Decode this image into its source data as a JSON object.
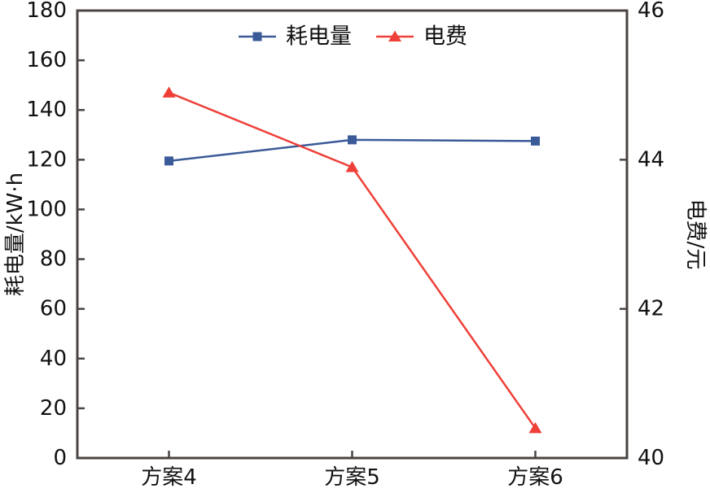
{
  "chart_data": {
    "type": "line",
    "categories": [
      "方案4",
      "方案5",
      "方案6"
    ],
    "series": [
      {
        "name": "耗电量",
        "axis": "left",
        "color": "#3a5a98",
        "marker": "square",
        "values": [
          119.5,
          128,
          127.5
        ]
      },
      {
        "name": "电费",
        "axis": "right",
        "color": "#ee4038",
        "marker": "triangle",
        "values": [
          44.9,
          43.9,
          40.4
        ]
      }
    ],
    "left_axis": {
      "label": "耗电量/kW·h",
      "min": 0,
      "max": 180,
      "tick_step": 20,
      "ticks": [
        0,
        20,
        40,
        60,
        80,
        100,
        120,
        140,
        160,
        180
      ]
    },
    "right_axis": {
      "label": "电费/元",
      "min": 40,
      "max": 46,
      "ticks": [
        40,
        42,
        44,
        46
      ]
    },
    "legend": {
      "position": "top-center",
      "entries": [
        {
          "label": "耗电量",
          "marker": "square",
          "color": "#3a5a98"
        },
        {
          "label": "电费",
          "marker": "triangle",
          "color": "#ee4038"
        }
      ]
    },
    "grid": false,
    "frame_color": "#4a4442",
    "title": "",
    "xlabel": ""
  }
}
